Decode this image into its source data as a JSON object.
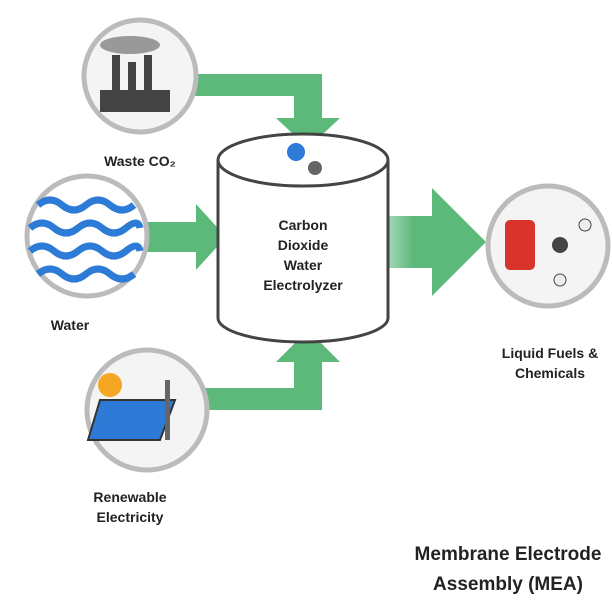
{
  "nodes": [
    {
      "label": [
        "Waste CO₂"
      ]
    },
    {
      "label": [
        "Water"
      ]
    },
    {
      "label": [
        "Renewable",
        "Electricity"
      ]
    },
    {
      "label": [
        "Carbon",
        "Dioxide",
        "Water",
        "Electrolyzer"
      ]
    },
    {
      "label": [
        "Liquid Fuels &",
        "Chemicals"
      ]
    }
  ],
  "caption": [
    "Membrane Electrode",
    "Assembly (MEA)"
  ]
}
